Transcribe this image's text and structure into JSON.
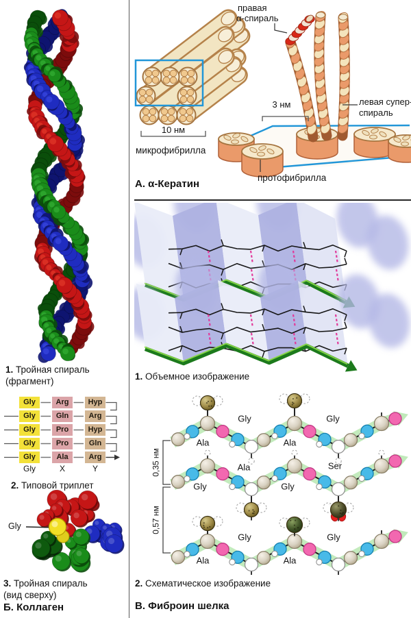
{
  "collagen": {
    "caption1": {
      "num": "1.",
      "line1": "Тройная спираль",
      "line2": "(фрагмент)"
    },
    "table": {
      "rows": [
        [
          "Gly",
          "Arg",
          "Hyp"
        ],
        [
          "Gly",
          "Gln",
          "Arg"
        ],
        [
          "Gly",
          "Pro",
          "Hyp"
        ],
        [
          "Gly",
          "Pro",
          "Gln"
        ],
        [
          "Gly",
          "Ala",
          "Arg"
        ]
      ],
      "footer": [
        "Gly",
        "X",
        "Y"
      ]
    },
    "caption2": {
      "num": "2.",
      "text": "Типовой триплет"
    },
    "gly_pointer": "Gly",
    "caption3": {
      "num": "3.",
      "line1": "Тройная спираль",
      "line2": "(вид сверху)"
    },
    "title": "Б. Коллаген"
  },
  "keratin": {
    "title": "А. α-Кератин",
    "labels": {
      "right_helix_l1": "правая",
      "right_helix_l2": "α-спираль",
      "supercoil_l1": "левая супер-",
      "supercoil_l2": "спираль",
      "d3nm": "3 нм",
      "d10nm": "10 нм",
      "microfibril": "микрофибрилла",
      "protofibril": "протофибрилла"
    }
  },
  "fibroin": {
    "title": "В. Фиброин шелка",
    "caption1": {
      "num": "1.",
      "text": "Объемное изображение"
    },
    "caption2": {
      "num": "2.",
      "text": "Схематическое изображение"
    },
    "d035": "0,35 нм",
    "d057": "0,57 нм",
    "chains": [
      {
        "top": [
          "Gly",
          "Gly"
        ],
        "bottom": [
          "Ala",
          "Ala"
        ]
      },
      {
        "top": [
          "Ala",
          "Ser"
        ],
        "bottom": [
          "Gly",
          "Gly"
        ]
      },
      {
        "top": [
          "Gly",
          "Gly"
        ],
        "bottom": [
          "Ala",
          "Ala"
        ]
      }
    ]
  },
  "colors": {
    "gly_cell": "#f3e139",
    "x_cell": "#dba4a8",
    "y_cell": "#d3b693",
    "strand_red": "#c01818",
    "strand_green": "#1a8c1a",
    "strand_blue": "#1f2cc0",
    "keratin_cream": "#f2e5c2",
    "keratin_salmon": "#ea9a6a",
    "outline_brown": "#b5824a",
    "frame_blue": "#2196d8",
    "sheet_blue": "#b0b4e4",
    "sheet_arrow_green": "#1c7a1c",
    "hbond_pink": "#e23a9a",
    "silk_band_green": "#b9e7b2",
    "bead_cyan": "#48bae8",
    "bead_pink": "#f268b0",
    "side_khaki": "#a08c48",
    "ser_red": "#e62020"
  }
}
